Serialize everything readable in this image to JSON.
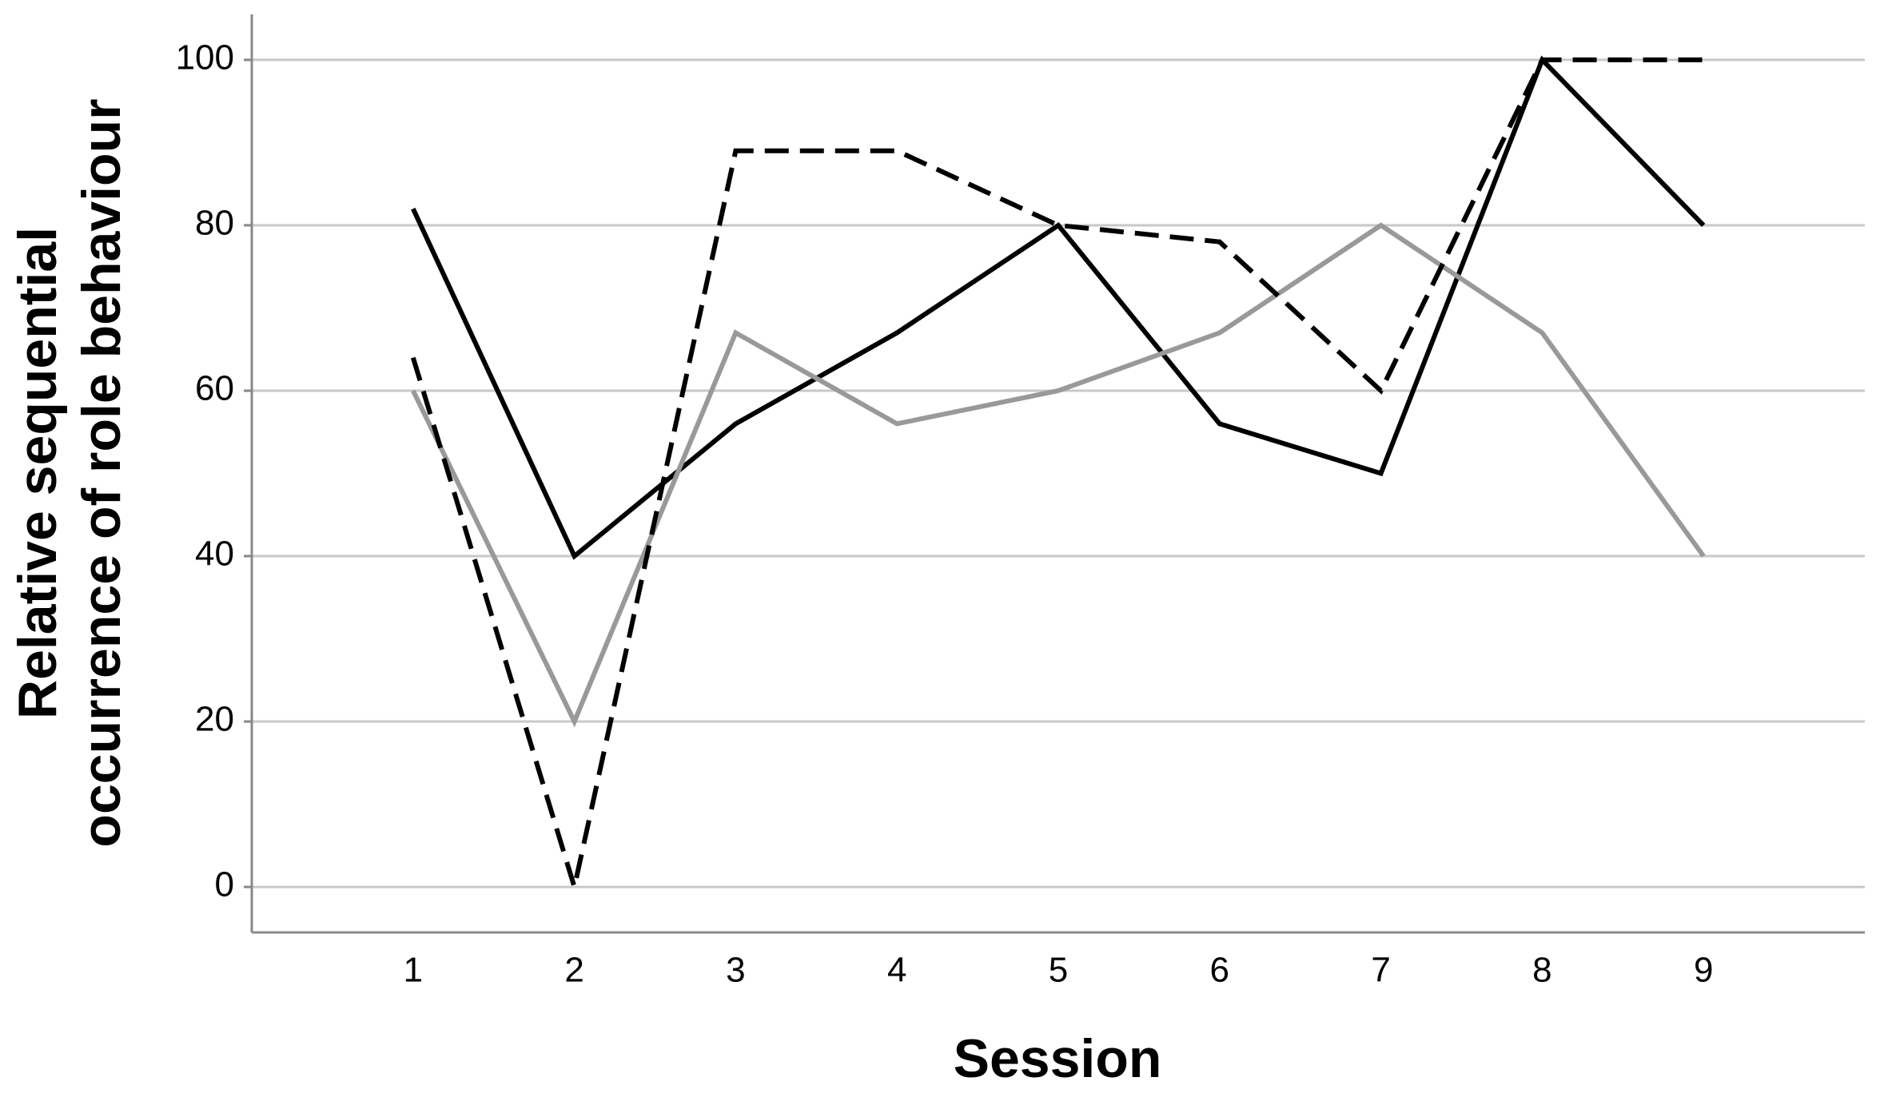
{
  "chart_data": {
    "type": "line",
    "x_label": "Session",
    "y_label": [
      "Relative sequential",
      "occurrence of role behaviour"
    ],
    "x": [
      1,
      2,
      3,
      4,
      5,
      6,
      7,
      8,
      9
    ],
    "series": [
      {
        "color": "#000000",
        "dashed": false,
        "values": [
          82,
          40,
          56,
          67,
          80,
          56,
          50,
          100,
          80
        ]
      },
      {
        "color": "#999999",
        "dashed": false,
        "values": [
          60,
          20,
          67,
          56,
          60,
          67,
          80,
          67,
          40
        ]
      },
      {
        "color": "#000000",
        "dashed": true,
        "values": [
          64,
          0,
          89,
          89,
          80,
          78,
          60,
          100,
          100
        ]
      }
    ],
    "xlim": [
      0,
      10
    ],
    "xticks": [
      1,
      2,
      3,
      4,
      5,
      6,
      7,
      8,
      9
    ],
    "ylim": [
      -5.5,
      105.5
    ],
    "yticks": [
      0,
      20,
      40,
      60,
      80,
      100
    ],
    "grid": true
  }
}
